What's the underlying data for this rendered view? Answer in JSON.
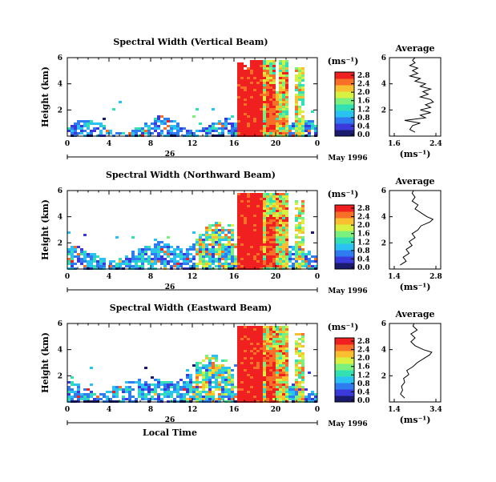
{
  "chart_data": [
    {
      "type": "heatmap",
      "title": "Spectral Width (Vertical Beam)",
      "ylabel": "Height (km)",
      "xlabel": "",
      "x_ticks": [
        "0",
        "4",
        "8",
        "12",
        "16",
        "20",
        "0"
      ],
      "y_ticks": [
        "6",
        "4",
        "2"
      ],
      "date_label": "May 1996",
      "day_label": "26",
      "colorbar": {
        "unit": "(ms⁻¹)",
        "ticks": [
          "0.0",
          "0.4",
          "0.8",
          "1.2",
          "1.6",
          "2.0",
          "2.4",
          "2.8"
        ]
      },
      "average": {
        "title": "Average",
        "xlabel": "(ms⁻¹)",
        "x_ticks": [
          "1.6",
          "2.4"
        ],
        "y_ticks": [
          "6",
          "4",
          "2"
        ],
        "profile": [
          [
            0.3,
            2.0
          ],
          [
            0.5,
            1.9
          ],
          [
            0.8,
            1.95
          ],
          [
            1.0,
            2.1
          ],
          [
            1.2,
            1.8
          ],
          [
            1.4,
            2.2
          ],
          [
            1.6,
            2.1
          ],
          [
            1.8,
            2.3
          ],
          [
            2.0,
            2.1
          ],
          [
            2.2,
            2.3
          ],
          [
            2.4,
            2.2
          ],
          [
            2.6,
            2.35
          ],
          [
            2.8,
            2.3
          ],
          [
            3.0,
            2.1
          ],
          [
            3.2,
            2.25
          ],
          [
            3.4,
            2.15
          ],
          [
            3.6,
            2.3
          ],
          [
            3.8,
            2.1
          ],
          [
            4.0,
            2.2
          ],
          [
            4.2,
            2.0
          ],
          [
            4.4,
            2.1
          ],
          [
            4.6,
            1.9
          ],
          [
            4.8,
            2.05
          ],
          [
            5.0,
            1.95
          ],
          [
            5.2,
            2.05
          ],
          [
            5.4,
            1.9
          ],
          [
            5.6,
            2.0
          ],
          [
            5.8,
            1.95
          ],
          [
            6.0,
            2.0
          ]
        ]
      }
    },
    {
      "type": "heatmap",
      "title": "Spectral Width (Northward Beam)",
      "ylabel": "Height (km)",
      "xlabel": "",
      "x_ticks": [
        "0",
        "4",
        "8",
        "12",
        "16",
        "20",
        "0"
      ],
      "y_ticks": [
        "6",
        "4",
        "2"
      ],
      "date_label": "May 1996",
      "day_label": "26",
      "colorbar": {
        "unit": "(ms⁻¹)",
        "ticks": [
          "0.0",
          "0.4",
          "0.8",
          "1.2",
          "1.6",
          "2.0",
          "2.4",
          "2.8"
        ]
      },
      "average": {
        "title": "Average",
        "xlabel": "(ms⁻¹)",
        "x_ticks": [
          "1.4",
          "2.8"
        ],
        "y_ticks": [
          "6",
          "4",
          "2"
        ],
        "profile": [
          [
            0.3,
            1.6
          ],
          [
            0.6,
            1.8
          ],
          [
            0.9,
            1.7
          ],
          [
            1.2,
            1.9
          ],
          [
            1.5,
            1.8
          ],
          [
            1.8,
            2.0
          ],
          [
            2.1,
            1.9
          ],
          [
            2.4,
            2.1
          ],
          [
            2.7,
            2.0
          ],
          [
            3.0,
            2.2
          ],
          [
            3.3,
            2.3
          ],
          [
            3.6,
            2.6
          ],
          [
            3.8,
            2.7
          ],
          [
            4.0,
            2.5
          ],
          [
            4.3,
            2.3
          ],
          [
            4.6,
            2.1
          ],
          [
            4.9,
            2.2
          ],
          [
            5.2,
            2.0
          ],
          [
            5.5,
            2.1
          ],
          [
            5.8,
            2.0
          ],
          [
            6.0,
            2.05
          ]
        ]
      }
    },
    {
      "type": "heatmap",
      "title": "Spectral Width (Eastward Beam)",
      "ylabel": "Height (km)",
      "xlabel": "Local Time",
      "x_ticks": [
        "0",
        "4",
        "8",
        "12",
        "16",
        "20",
        "0"
      ],
      "y_ticks": [
        "6",
        "4",
        "2"
      ],
      "date_label": "May 1996",
      "day_label": "26",
      "colorbar": {
        "unit": "(ms⁻¹)",
        "ticks": [
          "0.0",
          "0.4",
          "0.8",
          "1.2",
          "1.6",
          "2.0",
          "2.4",
          "2.8"
        ]
      },
      "average": {
        "title": "Average",
        "xlabel": "(ms⁻¹)",
        "x_ticks": [
          "1.4",
          "3.4"
        ],
        "y_ticks": [
          "6",
          "4",
          "2"
        ],
        "profile": [
          [
            0.3,
            1.9
          ],
          [
            0.6,
            1.7
          ],
          [
            0.9,
            1.8
          ],
          [
            1.2,
            1.75
          ],
          [
            1.5,
            1.9
          ],
          [
            1.8,
            1.85
          ],
          [
            2.1,
            2.1
          ],
          [
            2.4,
            2.0
          ],
          [
            2.7,
            2.3
          ],
          [
            3.0,
            2.5
          ],
          [
            3.3,
            2.8
          ],
          [
            3.6,
            3.1
          ],
          [
            3.8,
            3.2
          ],
          [
            4.0,
            2.8
          ],
          [
            4.3,
            2.4
          ],
          [
            4.6,
            2.2
          ],
          [
            4.9,
            2.4
          ],
          [
            5.2,
            2.2
          ],
          [
            5.5,
            2.5
          ],
          [
            5.8,
            2.3
          ],
          [
            6.0,
            2.35
          ]
        ]
      }
    }
  ],
  "colors": {
    "scale": [
      "#1a1a6e",
      "#3a3adc",
      "#2f7cf0",
      "#2ac2f0",
      "#32e0b4",
      "#7cf07c",
      "#d8f040",
      "#f8c030",
      "#f87028",
      "#f02020"
    ]
  }
}
